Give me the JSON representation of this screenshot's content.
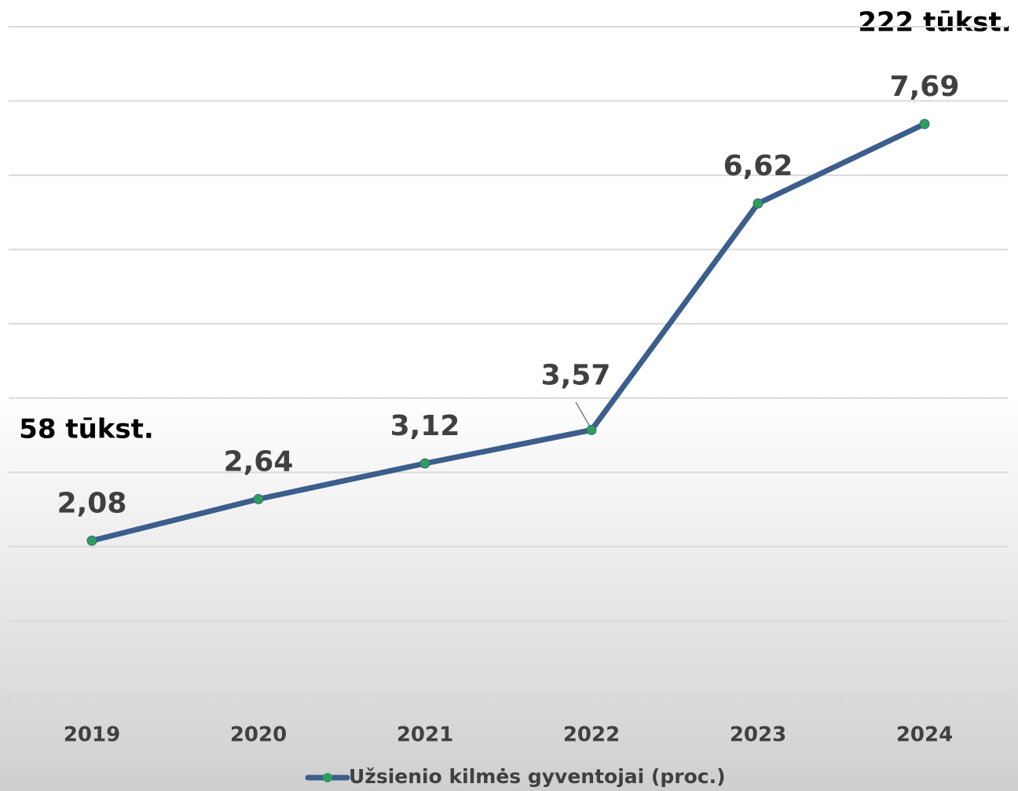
{
  "chart_data": {
    "type": "line",
    "categories": [
      "2019",
      "2020",
      "2021",
      "2022",
      "2023",
      "2024"
    ],
    "series": [
      {
        "name": "Užsienio kilmės gyventojai (proc.)",
        "color": "#3b5e8c",
        "marker_color": "#2ca05a",
        "values": [
          2.08,
          2.64,
          3.12,
          3.57,
          6.62,
          7.69
        ],
        "value_labels": [
          "2,08",
          "2,64",
          "3,12",
          "3,57",
          "6,62",
          "7,69"
        ]
      }
    ],
    "annotations": [
      "58 tūkst.",
      "222 tūkst."
    ],
    "ylim": [
      0,
      9
    ],
    "yticks": [
      0,
      1,
      2,
      3,
      4,
      5,
      6,
      7,
      8,
      9
    ],
    "grid": true,
    "legend": "bottom"
  }
}
